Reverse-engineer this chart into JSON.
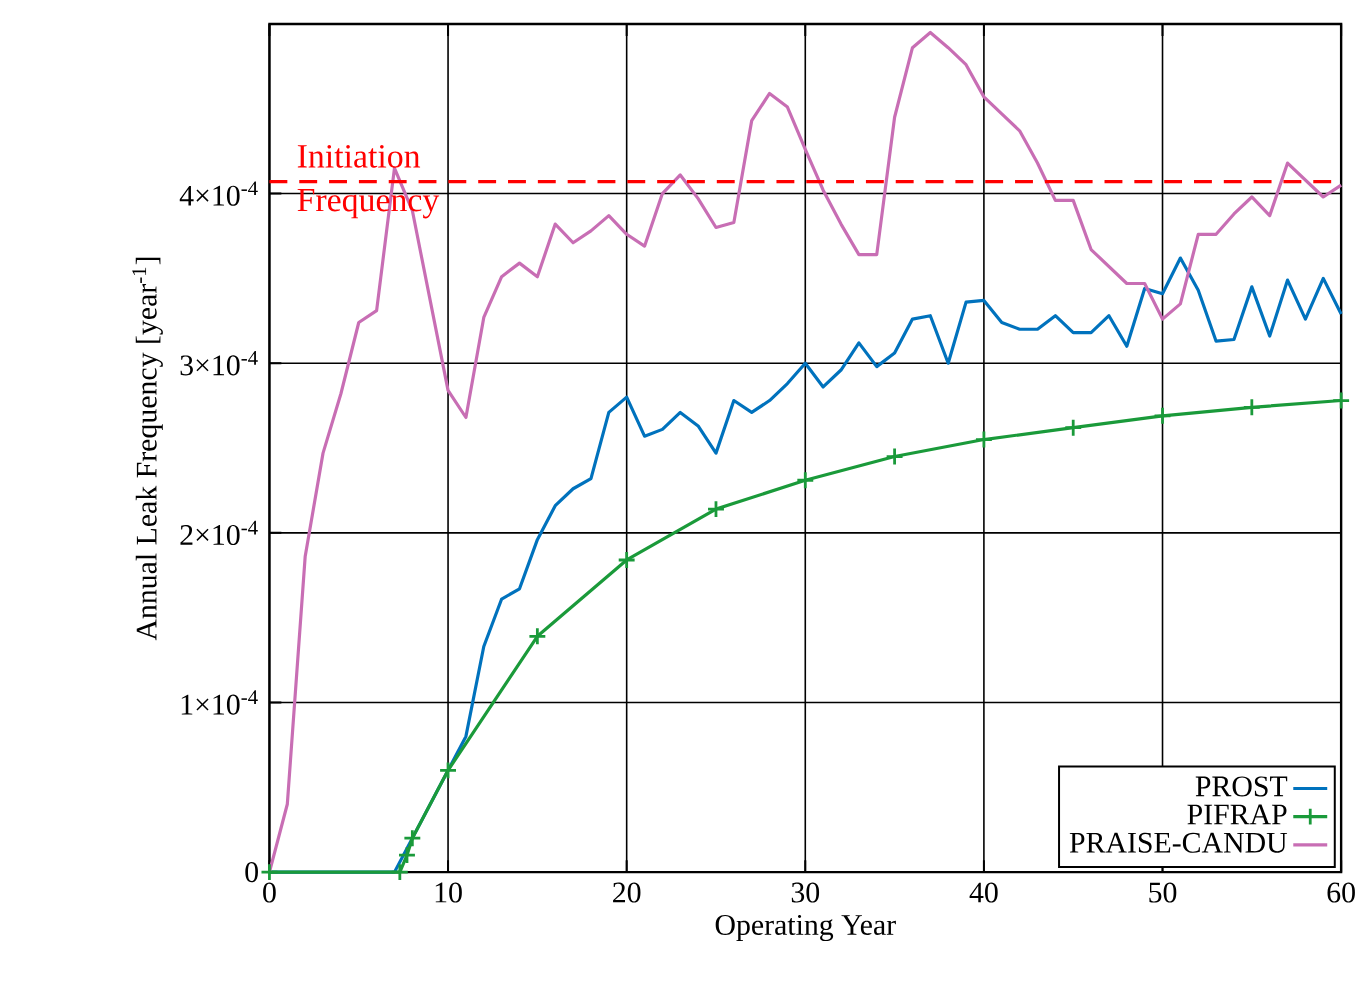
{
  "chart_data": {
    "type": "line",
    "xlabel": "Operating Year",
    "ylabel": "Annual Leak Frequency [year$^{-1}$]",
    "xlim": [
      0,
      60
    ],
    "xticks": [
      0,
      10,
      20,
      30,
      40,
      50,
      60
    ],
    "ylim": [
      0,
      0.0005
    ],
    "yticks": [
      0,
      {
        "value": 0.0001,
        "label": "1×10$^{-4}$"
      },
      {
        "value": 0.0002,
        "label": "2×10$^{-4}$"
      },
      {
        "value": 0.0003,
        "label": "3×10$^{-4}$"
      },
      {
        "value": 0.0004,
        "label": "4×10$^{-4}$"
      }
    ],
    "grid": true,
    "legend": "bottom right",
    "ref_lines": [
      {
        "axis": "y",
        "value": 0.000407,
        "label": "Initiation Frequency",
        "color": "#ff0000",
        "line_style": "dashed"
      }
    ],
    "series": [
      {
        "name": "PROST",
        "color": "#0072bd",
        "marker": "none",
        "x": [
          0,
          7,
          8,
          9,
          10,
          11,
          12,
          13,
          14,
          15,
          16,
          17,
          18,
          19,
          20,
          21,
          22,
          23,
          24,
          25,
          26,
          27,
          28,
          29,
          30,
          31,
          32,
          33,
          34,
          35,
          36,
          37,
          38,
          39,
          40,
          41,
          42,
          43,
          44,
          45,
          46,
          47,
          48,
          49,
          50,
          51,
          52,
          53,
          54,
          55,
          56,
          57,
          58,
          59,
          60
        ],
        "values": [
          0,
          0.0,
          2e-05,
          4e-05,
          6e-05,
          8e-05,
          0.000133,
          0.000161,
          0.000167,
          0.000196,
          0.000216,
          0.000226,
          0.000232,
          0.000271,
          0.00028,
          0.000257,
          0.000261,
          0.000271,
          0.000263,
          0.000247,
          0.000278,
          0.000271,
          0.000278,
          0.000288,
          0.0003,
          0.000286,
          0.000296,
          0.000312,
          0.000298,
          0.000306,
          0.000326,
          0.000328,
          0.0003,
          0.000336,
          0.000337,
          0.000324,
          0.00032,
          0.00032,
          0.000328,
          0.000318,
          0.000318,
          0.000328,
          0.00031,
          0.000344,
          0.000341,
          0.000362,
          0.000343,
          0.000313,
          0.000314,
          0.000345,
          0.000316,
          0.000349,
          0.000326,
          0.00035,
          0.000329
        ]
      },
      {
        "name": "PIFRAP",
        "color": "#1a9a3a",
        "marker": "cross",
        "x": [
          0,
          7.3,
          7.7,
          8,
          10,
          15,
          20,
          25,
          30,
          35,
          40,
          45,
          50,
          55,
          60
        ],
        "values": [
          0,
          0,
          1e-05,
          2e-05,
          6e-05,
          0.000139,
          0.000184,
          0.000214,
          0.000231,
          0.000245,
          0.000255,
          0.000262,
          0.000269,
          0.000274,
          0.000278
        ]
      },
      {
        "name": "PRAISE-CANDU",
        "color": "#c86eb4",
        "marker": "none",
        "x": [
          0,
          1,
          2,
          3,
          4,
          5,
          6,
          7,
          8,
          10,
          11,
          12,
          13,
          14,
          15,
          16,
          17,
          18,
          19,
          20,
          21,
          22,
          23,
          24,
          25,
          26,
          27,
          28,
          29,
          30,
          31,
          32,
          33,
          34,
          35,
          36,
          37,
          38,
          39,
          40,
          41,
          42,
          43,
          44,
          45,
          46,
          47,
          48,
          49,
          50,
          51,
          52,
          53,
          54,
          55,
          56,
          57,
          58,
          59,
          60
        ],
        "values": [
          0,
          4e-05,
          0.000186,
          0.000247,
          0.000282,
          0.000324,
          0.000331,
          0.000415,
          0.00039,
          0.000284,
          0.000268,
          0.000327,
          0.000351,
          0.000359,
          0.000351,
          0.000382,
          0.000371,
          0.000378,
          0.000387,
          0.000376,
          0.000369,
          0.0004,
          0.000411,
          0.000397,
          0.00038,
          0.000383,
          0.000443,
          0.000459,
          0.000451,
          0.000426,
          0.000402,
          0.000382,
          0.000364,
          0.000364,
          0.000445,
          0.000486,
          0.000495,
          0.000486,
          0.000476,
          0.000457,
          0.000447,
          0.000437,
          0.000418,
          0.000396,
          0.000396,
          0.000367,
          0.000357,
          0.000347,
          0.000347,
          0.000326,
          0.000335,
          0.000376,
          0.000376,
          0.000388,
          0.000398,
          0.000387,
          0.000418,
          0.000408,
          0.000398,
          0.000405
        ]
      }
    ]
  }
}
